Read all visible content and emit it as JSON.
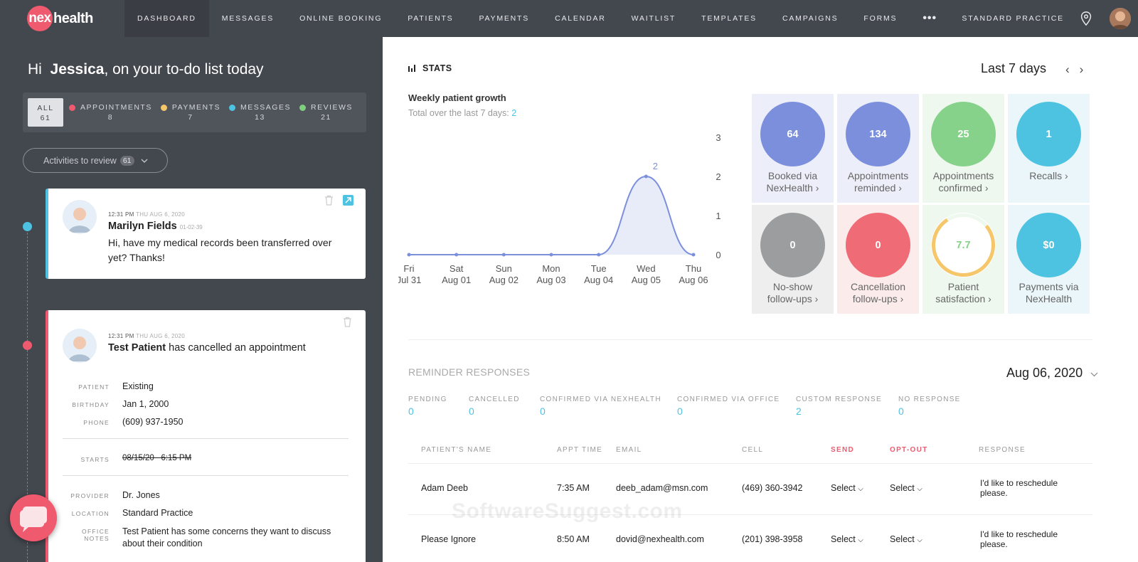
{
  "brand": {
    "logo_circle": "nex",
    "logo_text": "health"
  },
  "nav": {
    "items": [
      "DASHBOARD",
      "MESSAGES",
      "ONLINE BOOKING",
      "PATIENTS",
      "PAYMENTS",
      "CALENDAR",
      "WAITLIST",
      "TEMPLATES",
      "CAMPAIGNS",
      "FORMS"
    ],
    "more": "•••",
    "practice": "STANDARD PRACTICE"
  },
  "greeting": {
    "hi": "Hi",
    "name": "Jessica",
    "rest": ", on your to-do list today"
  },
  "filters": [
    {
      "label": "ALL",
      "count": "61",
      "color": ""
    },
    {
      "label": "APPOINTMENTS",
      "count": "8",
      "color": "#ef5a6f"
    },
    {
      "label": "PAYMENTS",
      "count": "7",
      "color": "#f6c66b"
    },
    {
      "label": "MESSAGES",
      "count": "13",
      "color": "#4dc3e1"
    },
    {
      "label": "REVIEWS",
      "count": "21",
      "color": "#7ed07e"
    }
  ],
  "review_button": {
    "label": "Activities to review",
    "count": "61"
  },
  "card1": {
    "time": "12:31 PM",
    "date": "THU AUG 6, 2020",
    "name": "Marilyn Fields",
    "id": "01-02-39",
    "message": "Hi, have my medical records been transferred over yet? Thanks!"
  },
  "card2": {
    "time": "12:31 PM",
    "date": "THU AUG 6, 2020",
    "name": "Test Patient",
    "action": "has cancelled an appointment",
    "fields": [
      {
        "label": "PATIENT",
        "value": "Existing"
      },
      {
        "label": "BIRTHDAY",
        "value": "Jan 1, 2000"
      },
      {
        "label": "PHONE",
        "value": "(609) 937-1950"
      }
    ],
    "starts_label": "STARTS",
    "starts_value": "08/15/20   6:15 PM",
    "fields2": [
      {
        "label": "PROVIDER",
        "value": "Dr. Jones"
      },
      {
        "label": "LOCATION",
        "value": "Standard Practice"
      },
      {
        "label": "OFFICE NOTES",
        "value": "Test Patient has some concerns they want to discuss about their condition"
      }
    ]
  },
  "stats": {
    "title": "STATS",
    "range": "Last 7 days",
    "growth_title": "Weekly patient growth",
    "growth_sub": "Total over the last 7 days:",
    "growth_total": "2"
  },
  "chart_data": {
    "type": "area",
    "categories": [
      [
        "Fri",
        "Jul 31"
      ],
      [
        "Sat",
        "Aug 01"
      ],
      [
        "Sun",
        "Aug 02"
      ],
      [
        "Mon",
        "Aug 03"
      ],
      [
        "Tue",
        "Aug 04"
      ],
      [
        "Wed",
        "Aug 05"
      ],
      [
        "Thu",
        "Aug 06"
      ]
    ],
    "values": [
      0,
      0,
      0,
      0,
      0,
      2,
      0
    ],
    "ylim": [
      0,
      3
    ],
    "yticks": [
      "3",
      "2",
      "1",
      "0"
    ],
    "peak_label": "2",
    "color": "#7b8fdc",
    "title": "",
    "xlabel": "",
    "ylabel": ""
  },
  "tiles": [
    {
      "value": "64",
      "label1": "Booked via",
      "label2": "NexHealth ›",
      "color": "#7b8fdc",
      "bg": "#eceef9"
    },
    {
      "value": "134",
      "label1": "Appointments",
      "label2": "reminded ›",
      "color": "#7b8fdc",
      "bg": "#eceef9"
    },
    {
      "value": "25",
      "label1": "Appointments",
      "label2": "confirmed ›",
      "color": "#86d28b",
      "bg": "#eef8ef"
    },
    {
      "value": "1",
      "label1": "Recalls ›",
      "label2": "",
      "color": "#4dc3e1",
      "bg": "#eaf6f9"
    },
    {
      "value": "0",
      "label1": "No-show",
      "label2": "follow-ups ›",
      "color": "#9b9d9f",
      "bg": "#eeeeee"
    },
    {
      "value": "0",
      "label1": "Cancellation",
      "label2": "follow-ups ›",
      "color": "#ef6b76",
      "bg": "#fbeceb"
    },
    {
      "value": "7.7",
      "label1": "Patient",
      "label2": "satisfaction ›",
      "color": "#f6c66b",
      "bg": "#eef8ef"
    },
    {
      "value": "$0",
      "label1": "Payments via",
      "label2": "NexHealth",
      "color": "#4dc3e1",
      "bg": "#eaf6f9"
    }
  ],
  "satisfaction_fraction": 0.77,
  "reminders": {
    "title": "REMINDER RESPONSES",
    "date": "Aug 06, 2020",
    "stats": [
      {
        "label": "PENDING",
        "value": "0"
      },
      {
        "label": "CANCELLED",
        "value": "0"
      },
      {
        "label": "CONFIRMED VIA NEXHEALTH",
        "value": "0"
      },
      {
        "label": "CONFIRMED VIA OFFICE",
        "value": "0"
      },
      {
        "label": "CUSTOM RESPONSE",
        "value": "2"
      },
      {
        "label": "NO RESPONSE",
        "value": "0"
      }
    ],
    "headers": [
      "PATIENT'S NAME",
      "APPT TIME",
      "EMAIL",
      "CELL",
      "SEND",
      "OPT-OUT",
      "RESPONSE"
    ],
    "rows": [
      {
        "name": "Adam Deeb",
        "time": "7:35 AM",
        "email": "deeb_adam@msn.com",
        "cell": "(469) 360-3942",
        "send": "Select",
        "optout": "Select",
        "response": "I'd like to reschedule please."
      },
      {
        "name": "Please Ignore",
        "time": "8:50 AM",
        "email": "dovid@nexhealth.com",
        "cell": "(201) 398-3958",
        "send": "Select",
        "optout": "Select",
        "response": "I'd like to reschedule please."
      }
    ]
  },
  "watermark": "SoftwareSuggest.com"
}
